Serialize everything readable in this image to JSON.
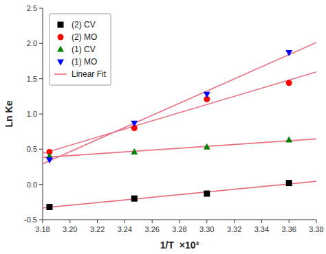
{
  "chart_data": {
    "type": "scatter",
    "x_label": "1/T  ×10³",
    "y_label": "Ln Ke",
    "xlim": [
      3.18,
      3.38
    ],
    "ylim": [
      -0.5,
      2.5
    ],
    "xticks": [
      3.18,
      {
        "value": 3.2,
        "label": "3.20"
      },
      3.22,
      3.24,
      3.26,
      3.28,
      {
        "value": 3.3,
        "label": "3.30"
      },
      3.32,
      3.34,
      3.36,
      3.38
    ],
    "yticks": [
      -0.5,
      {
        "value": 0,
        "label": "0.0"
      },
      0.5,
      {
        "value": 1,
        "label": "1.0"
      },
      1.5,
      {
        "value": 2,
        "label": "2.0"
      },
      2.5
    ],
    "grid": false,
    "legend": "upper left",
    "series": [
      {
        "name": "(2) CV",
        "type": "scatter",
        "color": "black",
        "marker": "square",
        "x": [
          3.185,
          3.247,
          3.3,
          3.36
        ],
        "values": [
          -0.32,
          -0.2,
          -0.13,
          0.02
        ]
      },
      {
        "name": "(2) MO",
        "type": "scatter",
        "color": "red",
        "marker": "circle",
        "x": [
          3.185,
          3.247,
          3.3,
          3.36
        ],
        "values": [
          0.46,
          0.8,
          1.21,
          1.44
        ]
      },
      {
        "name": "(1) CV",
        "type": "scatter",
        "color": "green",
        "marker": "triangle-up",
        "x": [
          3.185,
          3.247,
          3.3,
          3.36
        ],
        "values": [
          0.4,
          0.46,
          0.53,
          0.63
        ]
      },
      {
        "name": "(1) MO",
        "type": "scatter",
        "color": "blue",
        "marker": "triangle-down",
        "x": [
          3.185,
          3.247,
          3.3,
          3.36
        ],
        "values": [
          0.35,
          0.87,
          1.28,
          1.87
        ]
      },
      {
        "name": "Linear Fit",
        "type": "line",
        "color": "#e87080",
        "x": [
          3.18,
          3.38
        ],
        "values": [
          -0.3332,
          0.0447
        ]
      },
      {
        "name": "Linear Fit",
        "type": "line",
        "color": "#e87080",
        "x": [
          3.18,
          3.38
        ],
        "values": [
          0.4397,
          1.5962
        ]
      },
      {
        "name": "Linear Fit",
        "type": "line",
        "color": "#e87080",
        "x": [
          3.18,
          3.38
        ],
        "values": [
          0.3828,
          0.6456
        ]
      },
      {
        "name": "Linear Fit",
        "type": "line",
        "color": "#e87080",
        "x": [
          3.18,
          3.38
        ],
        "values": [
          0.2924,
          2.0131
        ]
      }
    ]
  }
}
